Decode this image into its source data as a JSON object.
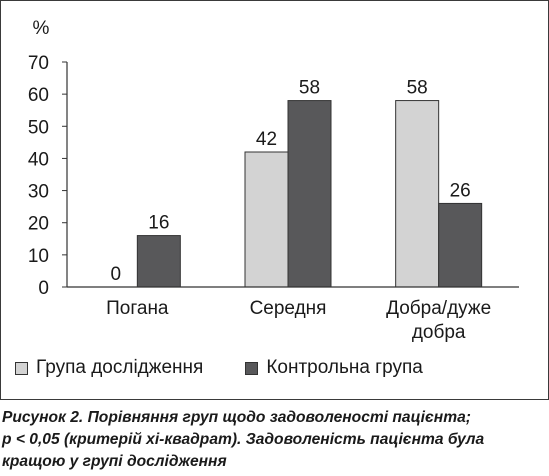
{
  "chart_data": {
    "type": "bar",
    "ylabel": "%",
    "ylim": [
      0,
      70
    ],
    "yticks": [
      "0",
      "10",
      "20",
      "30",
      "40",
      "50",
      "60",
      "70"
    ],
    "categories": [
      "Погана",
      "Середня",
      "Добра/дуже добра"
    ],
    "category_lines": [
      [
        "Погана"
      ],
      [
        "Середня"
      ],
      [
        "Добра/дуже",
        "добра"
      ]
    ],
    "series": [
      {
        "name": "Група дослідження",
        "values": [
          0,
          42,
          58
        ],
        "labels": [
          "0",
          "42",
          "58"
        ],
        "color": "#d3d3d3"
      },
      {
        "name": "Контрольна група",
        "values": [
          16,
          58,
          26
        ],
        "labels": [
          "16",
          "58",
          "26"
        ],
        "color": "#58585a"
      }
    ],
    "grid": false,
    "legend": "bottom"
  },
  "caption": {
    "lines": [
      "Рисунок 2. Порівняння груп щодо задоволеності пацієнта;",
      "p < 0,05 (критерій хі-квадрат). Задоволеність пацієнта була",
      "кращою у групі дослідження"
    ]
  }
}
